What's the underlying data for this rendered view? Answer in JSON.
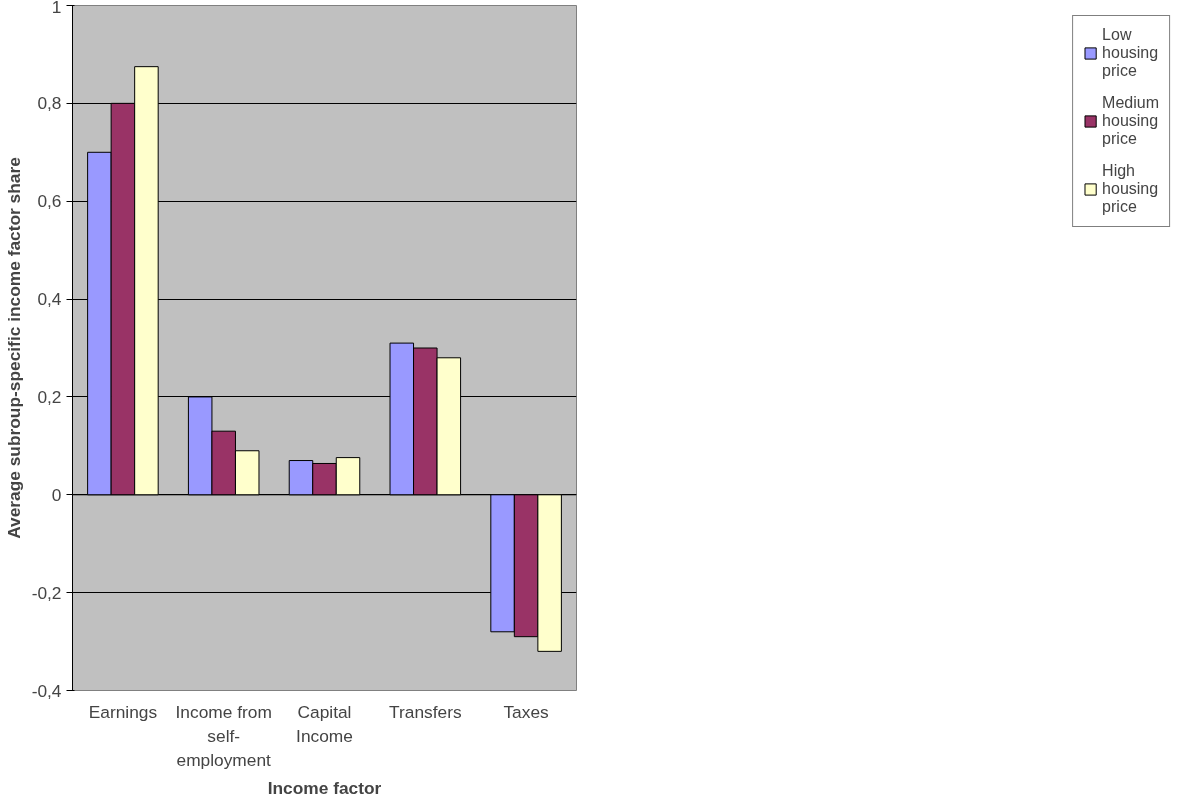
{
  "chart_data": {
    "type": "bar",
    "xlabel": "Income factor",
    "ylabel": "Average subroup-specific income factor share",
    "categories": [
      "Earnings",
      "Income from self-employment",
      "Capital Income",
      "Transfers",
      "Taxes"
    ],
    "series": [
      {
        "name": "Low housing price",
        "color": "#9999ff",
        "values": [
          0.7,
          0.2,
          0.07,
          0.31,
          -0.28
        ]
      },
      {
        "name": "Medium housing price",
        "color": "#993366",
        "values": [
          0.8,
          0.13,
          0.064,
          0.3,
          -0.29
        ]
      },
      {
        "name": "High housing price",
        "color": "#ffffcc",
        "values": [
          0.875,
          0.09,
          0.076,
          0.28,
          -0.32
        ]
      }
    ],
    "ylim": [
      -0.4,
      1
    ],
    "yticks": [
      {
        "value": -0.4,
        "label": "-0,4"
      },
      {
        "value": -0.2,
        "label": "-0,2"
      },
      0,
      {
        "value": 0.2,
        "label": "0,2"
      },
      {
        "value": 0.4,
        "label": "0,4"
      },
      {
        "value": 0.6,
        "label": "0,6"
      },
      {
        "value": 0.8,
        "label": "0,8"
      },
      1
    ],
    "grid": "y",
    "legend": "right"
  }
}
